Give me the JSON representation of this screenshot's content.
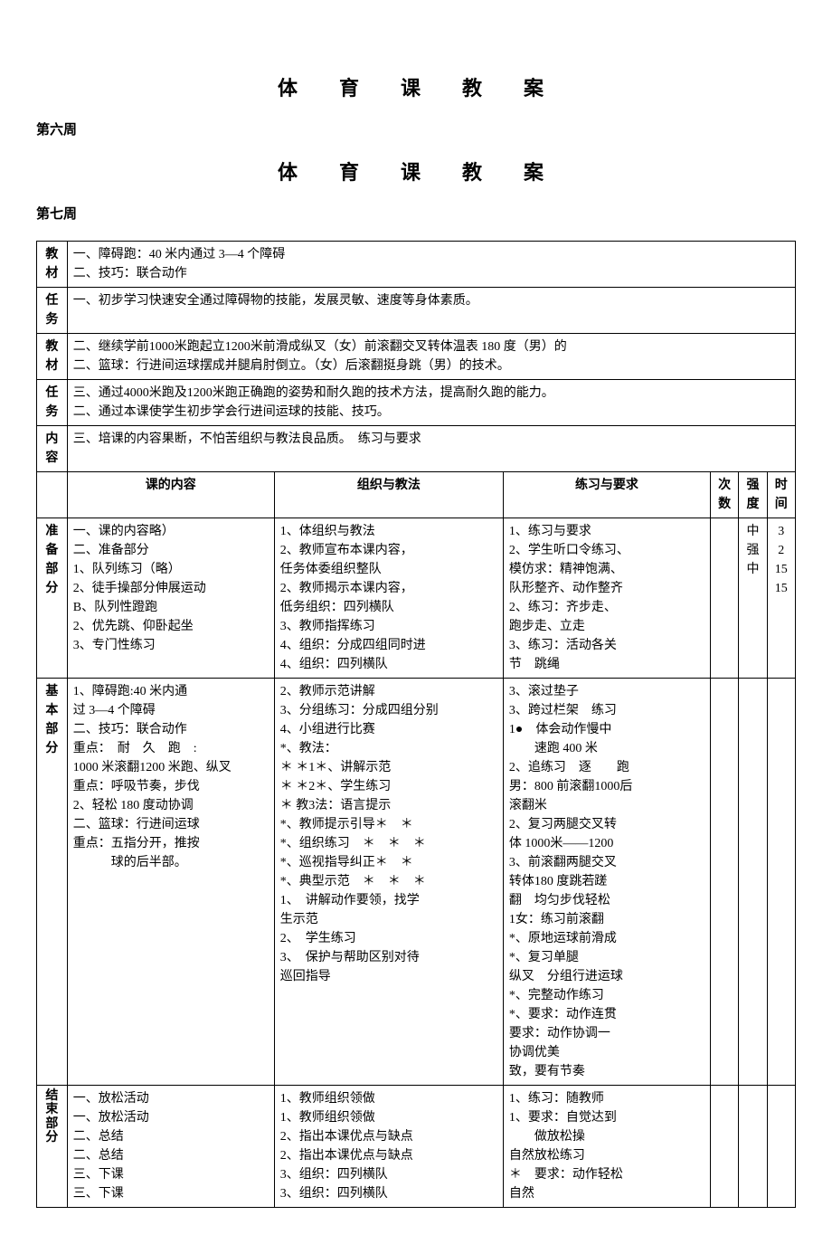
{
  "titles": {
    "main1": "体　育　课　教　案",
    "main2": "体　育　课　教　案"
  },
  "weeks": {
    "w6": "第六周",
    "w7": "第七周"
  },
  "labels": {
    "jiaocai": "教材",
    "renwu": "任务",
    "neirong": "内容",
    "zhunbei": "准备部分",
    "jiben": "基本部分",
    "jieshu": "结束部分",
    "kede_neirong": "课的内容",
    "zuzhi": "组织与教法",
    "lianxi": "练习与要求",
    "cishu": "次数",
    "qiangdu": "强度",
    "shijian": "时间"
  },
  "overlay_a": {
    "jiaocai_lines": "一、障碍跑：40 米内通过 3—4 个障碍\n二、技巧：联合动作",
    "renwu_line1": "一、初步学习快速安全通过障碍物的技能，发展灵敏、速度等身体素质。",
    "jiaocai2": "二、继续学前1000米跑起立1200米前滑成纵叉（女）前滚翻交叉转体温表 180 度（男）的\n二、篮球：行进间运球摆成并腿肩肘倒立。（女）后滚翻挺身跳（男）的技术。",
    "renwu2": "三、通过4000米跑及1200米跑正确跑的姿势和耐久跑的技术方法，提高耐久跑的能力。\n二、通过本课使学生初步学会行进间运球的技能、技巧。",
    "neirong": "三、培课的内容果断，不怕苦组织与教法良品质。　练习与要求"
  },
  "table_b": {
    "zhunbei_rows": {
      "col_a": "一、课的内容略）\n二、准备部分\n1、队列练习（略）\n2、徒手操部分伸展运动\nB、队列性蹬跑\n2、优先跳、仰卧起坐\n3、专门性练习",
      "col_b": "1、体组织与教法\n2、教师宣布本课内容，\n任务体委组织整队\n2、教师揭示本课内容，\n低务组织：四列横队\n3、教师指挥练习\n4、组织：分成四组同时进\n4、组织：四列横队",
      "col_c": "1、练习与要求\n2、学生听口令练习、\n模仿求：精神饱满、\n队形整齐、动作整齐\n2、练习：齐步走、\n跑步走、立走\n3、练习：活动各关\n节　跳绳",
      "cishu": "",
      "qiangdu": "中\n强\n中",
      "shijian": "3\n2\n15\n15"
    },
    "jiben_rows": {
      "col_a": "1、障碍跑:40 米内通\n过 3—4 个障碍\n二、技巧：联合动作\n重点：　耐　久　跑　:\n1000 米滚翻1200 米跑、纵叉\n重点：呼吸节奏，步伐\n2、轻松 180 度动协调\n二、篮球：行进间运球\n重点：五指分开，推按\n　　　球的后半部。",
      "col_b": "2、教师示范讲解\n3、分组练习：分成四组分别\n4、小组进行比赛\n*、教法：\n＊ ＊1＊、讲解示范\n＊ ＊2＊、学生练习\n＊ 教3法：语言提示\n*、教师提示引导＊　＊\n*、组织练习　＊　＊　＊\n*、巡视指导纠正＊　＊\n*、典型示范　＊　＊　＊\n1、　讲解动作要领，找学\n生示范\n2、　学生练习\n3、　保护与帮助区别对待\n巡回指导",
      "col_c": "3、滚过垫子\n3、跨过栏架　练习\n1●　体会动作慢中\n　　速跑 400 米\n2、追练习　逐　　跑\n男：800 前滚翻1000后\n滚翻米\n2、复习两腿交叉转\n体 1000米——1200\n3、前滚翻两腿交叉\n转体180 度跳若蹉\n翻　均匀步伐轻松\n1女：练习前滚翻\n*、原地运球前滑成\n*、复习单腿\n纵叉　分组行进运球\n*、完整动作练习\n*、要求：动作连贯\n要求：动作协调一\n协调优美\n致，要有节奏"
    },
    "jieshu_rows": {
      "col_a": "一、放松活动\n一、放松活动\n二、总结\n二、总结\n三、下课\n三、下课",
      "col_b": "1、教师组织领做\n1、教师组织领做\n2、指出本课优点与缺点\n2、指出本课优点与缺点\n3、组织：四列横队\n3、组织：四列横队",
      "col_c": "1、练习：随教师\n1、要求：自觉达到\n　　做放松操\n自然放松练习\n＊　要求：动作轻松\n自然"
    }
  }
}
